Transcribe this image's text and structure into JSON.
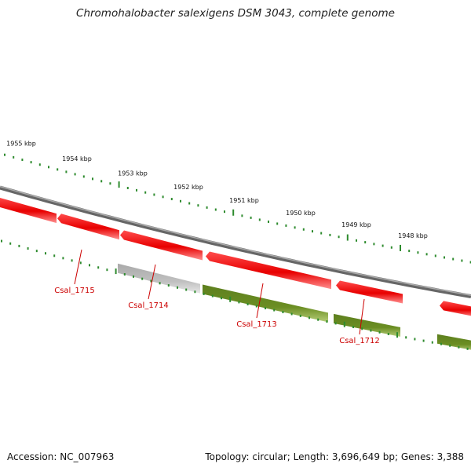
{
  "header": {
    "title": "Chromohalobacter salexigens DSM 3043, complete genome"
  },
  "footer": {
    "accession": "Accession: NC_007963",
    "summary": "Topology: circular; Length: 3,696,649 bp; Genes: 3,388"
  },
  "colors": {
    "backbone": "#7f7f7f",
    "scale_ticks": "#2e8b2e",
    "gene_forward": "#ee0000",
    "gene_forward_light": "#ff7a7a",
    "gene_reverse": "#6b8e23",
    "gene_reverse_light": "#a8c06a",
    "gene_other": "#b8b8b8",
    "gene_other_light": "#e2e2e2",
    "label": "#cc0000"
  },
  "scale": {
    "labels": [
      "1955 kbp",
      "1954 kbp",
      "1953 kbp",
      "1952 kbp",
      "1951 kbp",
      "1950 kbp",
      "1949 kbp",
      "1948 kbp"
    ]
  },
  "genes": [
    {
      "label": "",
      "strand": "forward",
      "kind": "cds"
    },
    {
      "label": "",
      "strand": "forward",
      "kind": "cds"
    },
    {
      "label": "Csal_1715",
      "strand": "forward",
      "kind": "cds"
    },
    {
      "label": "Csal_1714",
      "strand": "reverse",
      "kind": "other"
    },
    {
      "label": "",
      "strand": "forward",
      "kind": "cds"
    },
    {
      "label": "Csal_1713",
      "strand": "reverse",
      "kind": "cds"
    },
    {
      "label": "",
      "strand": "forward",
      "kind": "cds"
    },
    {
      "label": "Csal_1712",
      "strand": "reverse",
      "kind": "cds"
    },
    {
      "label": "",
      "strand": "forward",
      "kind": "cds"
    },
    {
      "label": "",
      "strand": "reverse",
      "kind": "cds"
    }
  ]
}
